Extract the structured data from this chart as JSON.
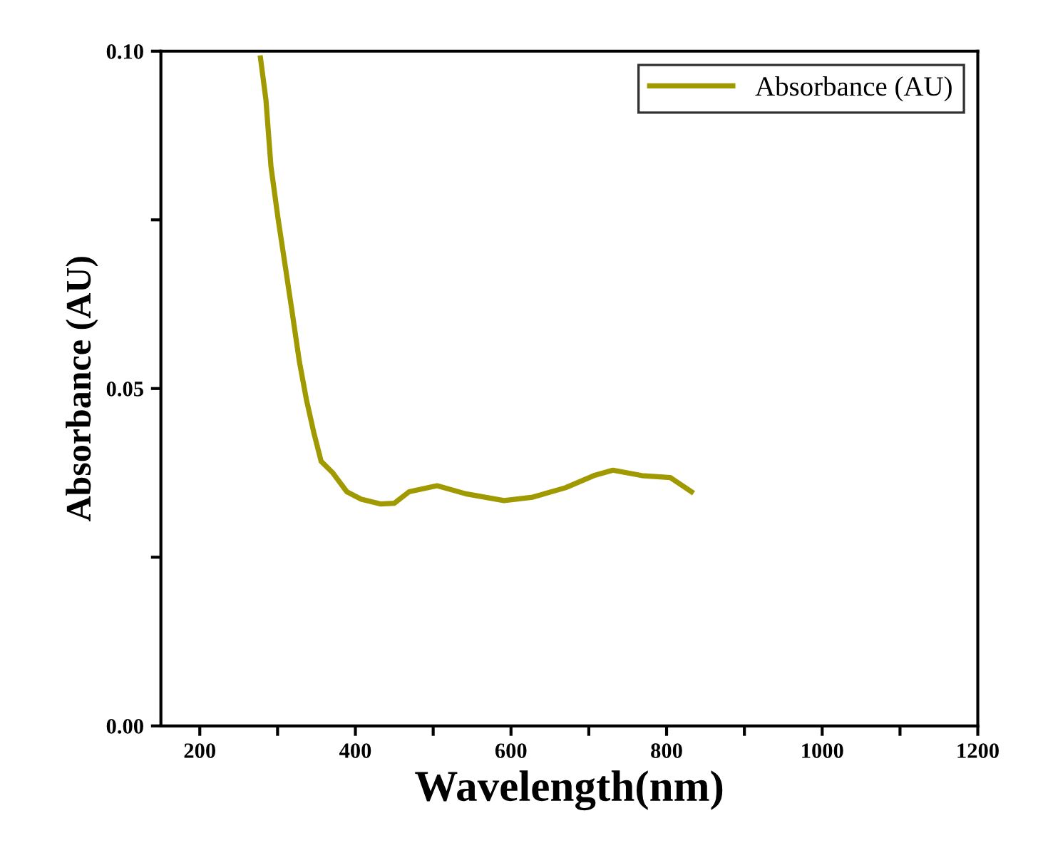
{
  "chart_data": {
    "type": "line",
    "xlabel": "Wavelength(nm)",
    "ylabel": "Absorbance (AU)",
    "series": [
      {
        "name": "Absorbance (AU)",
        "color": "#a09a00",
        "x": [
          278,
          285,
          291.5,
          300.6,
          309.9,
          319,
          328,
          337,
          346.5,
          356,
          371,
          389,
          407.6,
          432,
          450,
          469,
          505,
          542,
          591,
          628,
          670,
          706.6,
          731,
          768,
          805,
          832
        ],
        "values": [
          0.099,
          0.0928,
          0.0829,
          0.0752,
          0.0681,
          0.0611,
          0.054,
          0.0484,
          0.0435,
          0.0392,
          0.0375,
          0.0347,
          0.0336,
          0.0329,
          0.033,
          0.0347,
          0.0356,
          0.0344,
          0.0334,
          0.0339,
          0.0353,
          0.0371,
          0.0379,
          0.0371,
          0.0368,
          0.0347
        ]
      }
    ],
    "xlim": [
      150,
      1200
    ],
    "ylim": [
      0,
      0.1
    ],
    "xticks": [
      200,
      {
        "value": 300,
        "label": null
      },
      400,
      {
        "value": 500,
        "label": null
      },
      600,
      {
        "value": 700,
        "label": null
      },
      800,
      {
        "value": 900,
        "label": null
      },
      1000,
      {
        "value": 1100,
        "label": null
      },
      1200
    ],
    "yticks": [
      {
        "value": 0,
        "label": "0.00"
      },
      {
        "value": 0.025,
        "label": null
      },
      {
        "value": 0.05,
        "label": "0.05"
      },
      {
        "value": 0.075,
        "label": null
      },
      {
        "value": 0.1,
        "label": "0.10"
      }
    ],
    "grid": false,
    "legend": "top right",
    "marker": "none",
    "line_style": "solid"
  }
}
